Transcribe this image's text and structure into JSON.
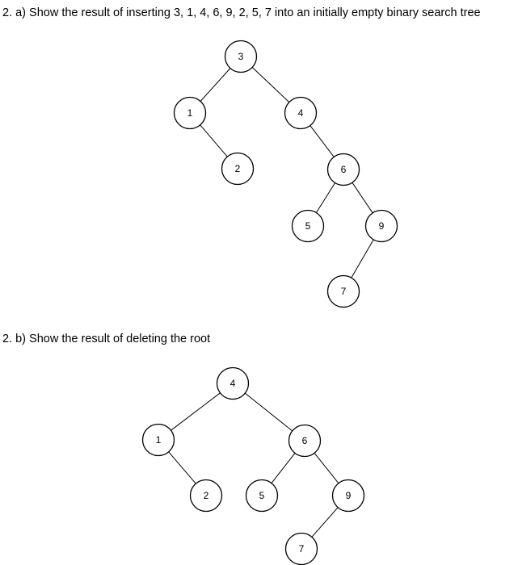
{
  "part_a": {
    "prompt": "2. a) Show the result of inserting 3, 1, 4, 6, 9, 2, 5, 7 into an initially empty binary search tree",
    "tree": {
      "nodes": [
        {
          "id": "a3",
          "label": "3"
        },
        {
          "id": "a1",
          "label": "1"
        },
        {
          "id": "a4",
          "label": "4"
        },
        {
          "id": "a2",
          "label": "2"
        },
        {
          "id": "a6",
          "label": "6"
        },
        {
          "id": "a5",
          "label": "5"
        },
        {
          "id": "a9",
          "label": "9"
        },
        {
          "id": "a7",
          "label": "7"
        }
      ],
      "edges": [
        [
          "a3",
          "a1"
        ],
        [
          "a3",
          "a4"
        ],
        [
          "a1",
          "a2"
        ],
        [
          "a4",
          "a6"
        ],
        [
          "a6",
          "a5"
        ],
        [
          "a6",
          "a9"
        ],
        [
          "a9",
          "a7"
        ]
      ]
    }
  },
  "part_b": {
    "prompt": "2. b) Show the result of deleting the root",
    "tree": {
      "nodes": [
        {
          "id": "b4",
          "label": "4"
        },
        {
          "id": "b1",
          "label": "1"
        },
        {
          "id": "b6",
          "label": "6"
        },
        {
          "id": "b2",
          "label": "2"
        },
        {
          "id": "b5",
          "label": "5"
        },
        {
          "id": "b9",
          "label": "9"
        },
        {
          "id": "b7",
          "label": "7"
        }
      ],
      "edges": [
        [
          "b4",
          "b1"
        ],
        [
          "b4",
          "b6"
        ],
        [
          "b1",
          "b2"
        ],
        [
          "b6",
          "b5"
        ],
        [
          "b6",
          "b9"
        ],
        [
          "b9",
          "b7"
        ]
      ]
    }
  }
}
